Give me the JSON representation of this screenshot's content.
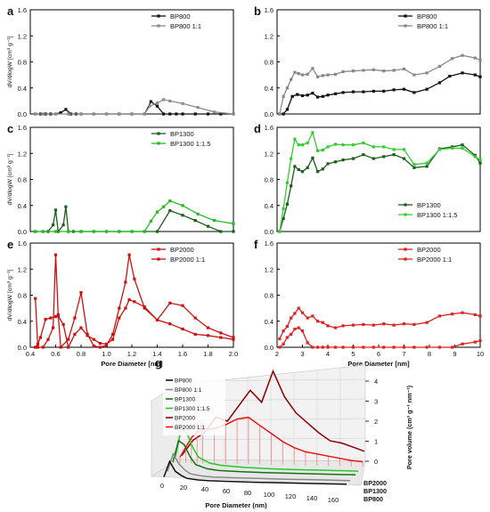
{
  "chart_data": [
    {
      "panel": "a",
      "type": "line",
      "ylabel": "dV/dlogW [cm³ g⁻¹]",
      "xlim": [
        0.4,
        2.0
      ],
      "ylim": [
        0,
        1.6
      ],
      "yticks": [
        "0.0",
        "0.4",
        "0.8",
        "1.2",
        "1.6"
      ],
      "legend_position": "top-right",
      "series": [
        {
          "name": "BP800",
          "color": "#111111",
          "marker": "square",
          "x": [
            0.44,
            0.48,
            0.52,
            0.56,
            0.6,
            0.64,
            0.68,
            0.72,
            0.76,
            0.8,
            0.9,
            1.0,
            1.1,
            1.2,
            1.3,
            1.35,
            1.4,
            1.45,
            1.5,
            1.55,
            1.6,
            1.7,
            1.8,
            1.9,
            2.0
          ],
          "y": [
            0.0,
            0.0,
            0.0,
            0.0,
            0.0,
            0.02,
            0.07,
            0.0,
            0.0,
            0.0,
            0.0,
            0.0,
            0.0,
            0.0,
            0.0,
            0.19,
            0.12,
            0.0,
            0.0,
            0.0,
            0.0,
            0.0,
            0.0,
            0.0,
            0.0
          ]
        },
        {
          "name": "BP800 1:1",
          "color": "#8c8c8c",
          "marker": "square",
          "x": [
            0.44,
            0.5,
            0.6,
            0.7,
            0.8,
            0.9,
            1.0,
            1.1,
            1.2,
            1.3,
            1.34,
            1.4,
            1.45,
            1.5,
            1.6,
            1.72,
            1.85,
            2.0
          ],
          "y": [
            0.0,
            0.0,
            0.0,
            0.0,
            0.0,
            0.0,
            0.0,
            0.0,
            0.0,
            0.0,
            0.12,
            0.17,
            0.22,
            0.2,
            0.16,
            0.1,
            0.03,
            0.0
          ]
        }
      ]
    },
    {
      "panel": "b",
      "type": "line",
      "xlim": [
        2,
        10
      ],
      "ylim": [
        0,
        1.6
      ],
      "yticks": [
        "0.0",
        "0.4",
        "0.8",
        "1.2",
        "1.6"
      ],
      "legend_position": "top-right",
      "series": [
        {
          "name": "BP800",
          "color": "#111111",
          "marker": "square",
          "x": [
            2.1,
            2.25,
            2.4,
            2.6,
            2.8,
            3.0,
            3.2,
            3.4,
            3.6,
            3.8,
            4.0,
            4.3,
            4.6,
            5.0,
            5.4,
            5.8,
            6.2,
            6.6,
            7.0,
            7.4,
            7.9,
            8.4,
            8.8,
            9.3,
            9.8,
            10.0
          ],
          "y": [
            0.0,
            0.0,
            0.07,
            0.27,
            0.3,
            0.28,
            0.29,
            0.32,
            0.26,
            0.27,
            0.29,
            0.31,
            0.33,
            0.34,
            0.34,
            0.35,
            0.35,
            0.37,
            0.38,
            0.33,
            0.38,
            0.48,
            0.58,
            0.63,
            0.6,
            0.57
          ]
        },
        {
          "name": "BP800 1:1",
          "color": "#888888",
          "marker": "square",
          "x": [
            2.1,
            2.25,
            2.4,
            2.55,
            2.7,
            2.85,
            3.0,
            3.2,
            3.4,
            3.6,
            3.8,
            4.0,
            4.3,
            4.6,
            5.0,
            5.4,
            5.8,
            6.2,
            6.6,
            7.0,
            7.4,
            7.9,
            8.4,
            8.9,
            9.3,
            9.8,
            10.0
          ],
          "y": [
            0.0,
            0.27,
            0.4,
            0.53,
            0.64,
            0.62,
            0.6,
            0.61,
            0.7,
            0.57,
            0.59,
            0.6,
            0.61,
            0.65,
            0.66,
            0.67,
            0.68,
            0.66,
            0.67,
            0.69,
            0.6,
            0.63,
            0.73,
            0.85,
            0.9,
            0.86,
            0.83
          ]
        }
      ]
    },
    {
      "panel": "c",
      "type": "line",
      "ylabel": "dV/dlogW [cm³ g⁻¹]",
      "xlim": [
        0.4,
        2.0
      ],
      "ylim": [
        0,
        1.6
      ],
      "yticks": [
        "0.0",
        "0.4",
        "0.8",
        "1.2",
        "1.6"
      ],
      "legend_position": "top-right",
      "series": [
        {
          "name": "BP1300",
          "color": "#1a5e1a",
          "marker": "square",
          "x": [
            0.44,
            0.5,
            0.54,
            0.58,
            0.6,
            0.62,
            0.66,
            0.68,
            0.7,
            0.74,
            0.8,
            0.9,
            1.0,
            1.1,
            1.2,
            1.3,
            1.4,
            1.5,
            1.6,
            1.7,
            1.8,
            1.9,
            2.0
          ],
          "y": [
            0.0,
            0.0,
            0.0,
            0.1,
            0.33,
            0.0,
            0.1,
            0.38,
            0.0,
            0.0,
            0.0,
            0.0,
            0.0,
            0.0,
            0.0,
            0.0,
            0.0,
            0.32,
            0.25,
            0.17,
            0.08,
            0.0,
            0.0
          ]
        },
        {
          "name": "BP1300 1:1.5",
          "color": "#22bb22",
          "marker": "square",
          "x": [
            0.44,
            0.5,
            0.6,
            0.7,
            0.8,
            0.9,
            1.0,
            1.1,
            1.2,
            1.3,
            1.35,
            1.4,
            1.45,
            1.5,
            1.6,
            1.72,
            1.85,
            2.0
          ],
          "y": [
            0.0,
            0.0,
            0.0,
            0.0,
            0.0,
            0.0,
            0.0,
            0.0,
            0.0,
            0.0,
            0.16,
            0.3,
            0.38,
            0.47,
            0.4,
            0.27,
            0.17,
            0.12
          ]
        }
      ]
    },
    {
      "panel": "d",
      "type": "line",
      "xlim": [
        2,
        10
      ],
      "ylim": [
        0,
        1.6
      ],
      "yticks": [
        "0.0",
        "0.4",
        "0.8",
        "1.2",
        "1.6"
      ],
      "legend_position": "bottom-right",
      "series": [
        {
          "name": "BP1300",
          "color": "#1a5e1a",
          "marker": "square",
          "x": [
            2.1,
            2.25,
            2.4,
            2.55,
            2.7,
            2.85,
            3.0,
            3.2,
            3.4,
            3.6,
            3.8,
            4.0,
            4.3,
            4.6,
            5.0,
            5.4,
            5.8,
            6.2,
            6.6,
            7.0,
            7.4,
            7.9,
            8.4,
            8.9,
            9.3,
            9.8,
            10.0
          ],
          "y": [
            0.0,
            0.2,
            0.42,
            0.7,
            1.0,
            0.95,
            0.92,
            0.98,
            1.13,
            0.92,
            0.96,
            1.04,
            1.07,
            1.1,
            1.12,
            1.18,
            1.12,
            1.15,
            1.18,
            1.12,
            0.98,
            1.0,
            1.27,
            1.3,
            1.33,
            1.17,
            1.05
          ]
        },
        {
          "name": "BP1300 1:1.5",
          "color": "#33cc33",
          "marker": "square",
          "x": [
            2.1,
            2.25,
            2.4,
            2.55,
            2.7,
            2.85,
            3.0,
            3.2,
            3.4,
            3.6,
            3.8,
            4.0,
            4.3,
            4.6,
            5.0,
            5.4,
            5.8,
            6.2,
            6.6,
            7.0,
            7.4,
            7.9,
            8.4,
            8.9,
            9.3,
            9.8,
            10.0
          ],
          "y": [
            0.0,
            0.35,
            0.75,
            1.12,
            1.42,
            1.33,
            1.33,
            1.36,
            1.52,
            1.24,
            1.25,
            1.3,
            1.34,
            1.33,
            1.33,
            1.36,
            1.3,
            1.3,
            1.26,
            1.26,
            1.03,
            1.05,
            1.26,
            1.28,
            1.28,
            1.15,
            1.1
          ]
        }
      ]
    },
    {
      "panel": "e",
      "type": "line",
      "ylabel": "dV/dlogW [cm³ g⁻¹]",
      "xlabel": "Pore Diameter [nm]",
      "xlim": [
        0.4,
        2.0
      ],
      "xticks": [
        "0.4",
        "0.6",
        "0.8",
        "1.0",
        "1.2",
        "1.4",
        "1.6",
        "1.8",
        "2.0"
      ],
      "ylim": [
        0,
        1.6
      ],
      "yticks": [
        "0.0",
        "0.4",
        "0.8",
        "1.2",
        "1.6"
      ],
      "legend_position": "top-right",
      "series": [
        {
          "name": "BP2000",
          "color": "#cc1111",
          "marker": "square",
          "x": [
            0.44,
            0.46,
            0.5,
            0.54,
            0.58,
            0.6,
            0.62,
            0.64,
            0.7,
            0.75,
            0.8,
            0.85,
            0.9,
            0.95,
            1.0,
            1.05,
            1.1,
            1.15,
            1.18,
            1.22,
            1.3,
            1.4,
            1.5,
            1.6,
            1.7,
            1.8,
            1.9,
            2.0
          ],
          "y": [
            0.75,
            0.0,
            0.0,
            0.12,
            0.3,
            1.42,
            0.5,
            0.0,
            0.12,
            0.45,
            0.84,
            0.2,
            0.02,
            0.0,
            0.03,
            0.2,
            0.6,
            1.0,
            1.42,
            1.05,
            0.6,
            0.42,
            0.36,
            0.28,
            0.2,
            0.18,
            0.15,
            0.12
          ]
        },
        {
          "name": "BP2000 1:1",
          "color": "#cc1111",
          "marker": "square",
          "x": [
            0.44,
            0.46,
            0.48,
            0.52,
            0.56,
            0.6,
            0.62,
            0.66,
            0.7,
            0.75,
            0.8,
            0.85,
            0.9,
            0.95,
            1.0,
            1.05,
            1.1,
            1.15,
            1.18,
            1.22,
            1.3,
            1.4,
            1.5,
            1.6,
            1.7,
            1.8,
            1.9,
            2.0
          ],
          "y": [
            0.0,
            0.05,
            0.15,
            0.43,
            0.45,
            0.47,
            0.48,
            0.35,
            0.0,
            0.2,
            0.3,
            0.18,
            0.12,
            0.06,
            0.05,
            0.12,
            0.45,
            0.6,
            0.73,
            0.7,
            0.62,
            0.42,
            0.68,
            0.64,
            0.45,
            0.3,
            0.22,
            0.15
          ]
        }
      ]
    },
    {
      "panel": "f",
      "type": "line",
      "xlabel": "Pore Diameter [nm]",
      "xlim": [
        2,
        10
      ],
      "xticks": [
        "2",
        "3",
        "4",
        "5",
        "6",
        "7",
        "8",
        "9",
        "10"
      ],
      "ylim": [
        0,
        1.6
      ],
      "yticks": [
        "0.0",
        "0.4",
        "0.8",
        "1.2",
        "1.6"
      ],
      "legend_position": "top-right",
      "series": [
        {
          "name": "BP2000",
          "color": "#dd2222",
          "marker": "square",
          "x": [
            2.1,
            2.25,
            2.4,
            2.55,
            2.7,
            2.85,
            3.0,
            3.2,
            3.4,
            3.6,
            3.8,
            4.0,
            4.3,
            4.6,
            5.0,
            5.4,
            5.8,
            6.2,
            6.6,
            7.0,
            7.4,
            7.9,
            8.4,
            8.9,
            9.3,
            9.8,
            10.0
          ],
          "y": [
            0.0,
            0.05,
            0.15,
            0.2,
            0.28,
            0.3,
            0.25,
            0.07,
            0.0,
            0.0,
            0.0,
            0.0,
            0.0,
            0.0,
            0.0,
            0.0,
            0.0,
            0.0,
            0.0,
            0.0,
            0.0,
            0.0,
            0.0,
            0.0,
            0.05,
            0.08,
            0.1
          ]
        },
        {
          "name": "BP2000 1:1",
          "color": "#dd2222",
          "marker": "square",
          "x": [
            2.1,
            2.25,
            2.4,
            2.55,
            2.7,
            2.85,
            3.0,
            3.2,
            3.4,
            3.6,
            3.8,
            4.0,
            4.3,
            4.6,
            5.0,
            5.4,
            5.8,
            6.2,
            6.6,
            7.0,
            7.4,
            7.9,
            8.4,
            8.9,
            9.3,
            9.8,
            10.0
          ],
          "y": [
            0.13,
            0.25,
            0.32,
            0.45,
            0.52,
            0.6,
            0.53,
            0.45,
            0.48,
            0.4,
            0.38,
            0.33,
            0.3,
            0.33,
            0.34,
            0.35,
            0.34,
            0.36,
            0.34,
            0.36,
            0.35,
            0.38,
            0.48,
            0.51,
            0.53,
            0.5,
            0.48
          ]
        }
      ]
    },
    {
      "panel": "g",
      "type": "line",
      "projection": "3d",
      "xlabel": "Pore Diameter (nm)",
      "xticks": [
        "0",
        "20",
        "40",
        "60",
        "80",
        "100",
        "120",
        "140",
        "160"
      ],
      "zlabel": "Pore volume (cm³ g⁻¹ nm⁻¹)",
      "zticks": [
        "0",
        "1",
        "2",
        "3",
        "4"
      ],
      "depth_labels": [
        "BP2000",
        "BP1300",
        "BP800"
      ],
      "legend_position": "top-left",
      "series": [
        {
          "name": "BP800",
          "color": "#111111",
          "x": [
            0,
            5,
            10,
            15,
            20,
            30,
            40,
            60,
            80,
            100,
            130,
            160
          ],
          "y": [
            0.2,
            1.0,
            0.5,
            0.3,
            0.15,
            0.08,
            0.05,
            0.03,
            0.02,
            0.02,
            0.01,
            0.01
          ]
        },
        {
          "name": "BP800 1:1",
          "color": "#888888",
          "x": [
            0,
            5,
            10,
            15,
            20,
            30,
            40,
            60,
            80,
            100,
            130,
            160
          ],
          "y": [
            0.3,
            1.2,
            0.7,
            0.4,
            0.2,
            0.1,
            0.06,
            0.04,
            0.03,
            0.02,
            0.02,
            0.01
          ]
        },
        {
          "name": "BP1300",
          "color": "#1a6e1a",
          "x": [
            0,
            5,
            10,
            15,
            20,
            30,
            40,
            60,
            80,
            100,
            130,
            160
          ],
          "y": [
            0.5,
            1.6,
            1.4,
            0.8,
            0.4,
            0.2,
            0.12,
            0.08,
            0.06,
            0.05,
            0.04,
            0.03
          ]
        },
        {
          "name": "BP1300 1:1.5",
          "color": "#22cc22",
          "x": [
            0,
            5,
            10,
            15,
            20,
            30,
            40,
            60,
            80,
            100,
            130,
            160
          ],
          "y": [
            0.6,
            2.0,
            1.8,
            1.1,
            0.6,
            0.3,
            0.2,
            0.12,
            0.08,
            0.06,
            0.05,
            0.04
          ]
        },
        {
          "name": "BP2000",
          "color": "#8b0000",
          "x": [
            0,
            5,
            10,
            15,
            20,
            30,
            40,
            50,
            60,
            70,
            80,
            90,
            100,
            110,
            120,
            130,
            140,
            150,
            160
          ],
          "y": [
            0.2,
            0.6,
            1.0,
            1.2,
            1.4,
            2.2,
            2.0,
            2.8,
            3.6,
            3.0,
            4.6,
            3.3,
            2.5,
            2.0,
            1.5,
            1.1,
            1.0,
            0.8,
            0.6
          ]
        },
        {
          "name": "BP2000 1:1",
          "color": "#ee1111",
          "x": [
            0,
            5,
            10,
            15,
            20,
            30,
            40,
            50,
            60,
            70,
            80,
            90,
            100,
            110,
            120,
            130,
            140,
            150,
            160
          ],
          "y": [
            0.3,
            0.8,
            1.3,
            1.6,
            1.7,
            1.8,
            2.0,
            2.3,
            2.4,
            2.0,
            1.6,
            1.2,
            0.9,
            0.7,
            0.6,
            0.5,
            0.4,
            0.3,
            0.25
          ]
        }
      ]
    }
  ]
}
